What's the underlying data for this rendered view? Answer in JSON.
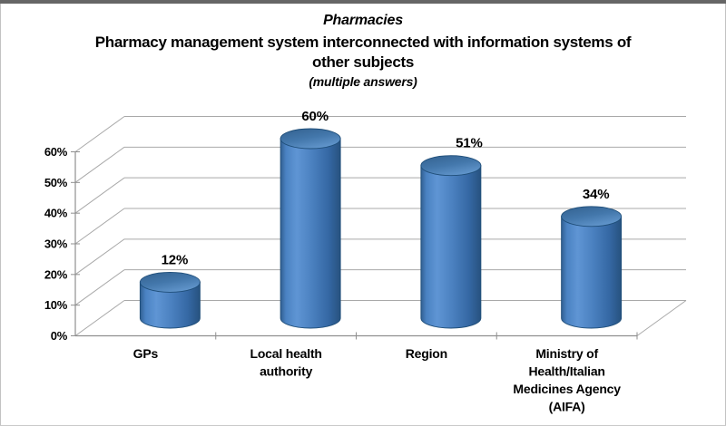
{
  "chart_data": {
    "type": "bar",
    "style": "3d-cylinder",
    "title": "Pharmacies",
    "subtitle": "Pharmacy management system interconnected with information systems of other subjects",
    "subtitle_lines": [
      "Pharmacy management system interconnected with information systems of",
      "other subjects"
    ],
    "note": "(multiple answers)",
    "categories": [
      "GPs",
      "Local health authority",
      "Region",
      "Ministry of Health/Italian Medicines Agency (AIFA)"
    ],
    "category_label_lines": [
      [
        "GPs"
      ],
      [
        "Local health",
        "authority"
      ],
      [
        "Region"
      ],
      [
        "Ministry of",
        "Health/Italian",
        "Medicines Agency",
        "(AIFA)"
      ]
    ],
    "values": [
      12,
      60,
      51,
      34
    ],
    "unit": "%",
    "data_labels": [
      "12%",
      "60%",
      "51%",
      "34%"
    ],
    "y_axis": {
      "min": 0,
      "max": 60,
      "ticks": [
        0,
        10,
        20,
        30,
        40,
        50,
        60
      ],
      "tick_labels": [
        "0%",
        "10%",
        "20%",
        "30%",
        "40%",
        "50%",
        "60%"
      ],
      "gridlines": true
    },
    "legend": "none",
    "colors": {
      "bar_fill": "#4f81bd",
      "bar_highlight": "#5f95d4",
      "bar_shadow": "#27527f",
      "bar_border": "#1f4e79",
      "gridline": "#a9a9a9",
      "axis": "#8f8f8f",
      "text": "#000000",
      "background": "#ffffff"
    }
  }
}
